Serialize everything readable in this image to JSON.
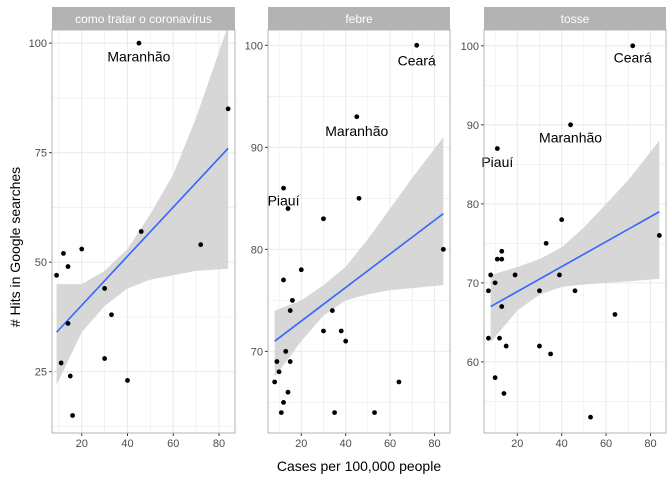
{
  "chart_data": {
    "type": "scatter",
    "xlabel": "Cases per 100,000 people",
    "ylabel": "# Hits in Google searches",
    "grid": true,
    "smoothing": "linear fit with confidence band",
    "colors": {
      "points": "#000000",
      "fit_line": "#3366ff",
      "band": "#d3d3d3",
      "strip": "#b3b3b3",
      "grid": "#ebebeb",
      "panel_border": "#b3b3b3"
    },
    "panels": [
      {
        "strip": "como tratar o coronavírus",
        "xlim": [
          7,
          87
        ],
        "ylim": [
          11,
          103
        ],
        "xticks": [
          20,
          40,
          60,
          80
        ],
        "yticks": [
          25,
          50,
          75,
          100
        ],
        "fit": {
          "x": [
            9,
            84
          ],
          "y": [
            34,
            76
          ]
        },
        "band": {
          "x": [
            9,
            20,
            30,
            40,
            50,
            60,
            70,
            84
          ],
          "lower": [
            22,
            34,
            40,
            44,
            46,
            47,
            48,
            48.5
          ],
          "upper": [
            45,
            45,
            48,
            53,
            61,
            70,
            83,
            104
          ]
        },
        "points": [
          {
            "x": 9,
            "y": 47
          },
          {
            "x": 11,
            "y": 27
          },
          {
            "x": 12,
            "y": 52
          },
          {
            "x": 14,
            "y": 36
          },
          {
            "x": 14,
            "y": 49
          },
          {
            "x": 15,
            "y": 24
          },
          {
            "x": 16,
            "y": 15
          },
          {
            "x": 20,
            "y": 53
          },
          {
            "x": 30,
            "y": 44
          },
          {
            "x": 30,
            "y": 28
          },
          {
            "x": 33,
            "y": 38
          },
          {
            "x": 40,
            "y": 23
          },
          {
            "x": 45,
            "y": 100
          },
          {
            "x": 46,
            "y": 57
          },
          {
            "x": 72,
            "y": 54
          },
          {
            "x": 84,
            "y": 85
          }
        ],
        "annotations": [
          {
            "text": "Maranhão",
            "x": 45,
            "y": 97
          }
        ]
      },
      {
        "strip": "febre",
        "xlim": [
          5,
          87
        ],
        "ylim": [
          62,
          101.5
        ],
        "xticks": [
          20,
          40,
          60,
          80
        ],
        "yticks": [
          70,
          80,
          90,
          100
        ],
        "fit": {
          "x": [
            8,
            84
          ],
          "y": [
            71,
            83.5
          ]
        },
        "band": {
          "x": [
            8,
            20,
            30,
            40,
            50,
            60,
            70,
            84
          ],
          "lower": [
            67.5,
            71,
            73.5,
            75,
            75.6,
            76,
            76.2,
            76.5
          ],
          "upper": [
            74,
            75,
            76.5,
            78.3,
            81,
            84,
            87,
            91
          ]
        },
        "points": [
          {
            "x": 8,
            "y": 67
          },
          {
            "x": 9,
            "y": 69
          },
          {
            "x": 10,
            "y": 68
          },
          {
            "x": 11,
            "y": 64
          },
          {
            "x": 12,
            "y": 86
          },
          {
            "x": 12,
            "y": 77
          },
          {
            "x": 12,
            "y": 65
          },
          {
            "x": 13,
            "y": 70
          },
          {
            "x": 14,
            "y": 84
          },
          {
            "x": 14,
            "y": 66
          },
          {
            "x": 15,
            "y": 74
          },
          {
            "x": 15,
            "y": 69
          },
          {
            "x": 16,
            "y": 75
          },
          {
            "x": 20,
            "y": 78
          },
          {
            "x": 30,
            "y": 83
          },
          {
            "x": 30,
            "y": 72
          },
          {
            "x": 34,
            "y": 74
          },
          {
            "x": 35,
            "y": 64
          },
          {
            "x": 38,
            "y": 72
          },
          {
            "x": 40,
            "y": 71
          },
          {
            "x": 45,
            "y": 93
          },
          {
            "x": 46,
            "y": 85
          },
          {
            "x": 53,
            "y": 64
          },
          {
            "x": 64,
            "y": 67
          },
          {
            "x": 72,
            "y": 100
          },
          {
            "x": 84,
            "y": 80
          }
        ],
        "annotations": [
          {
            "text": "Ceará",
            "x": 72,
            "y": 98.5
          },
          {
            "text": "Maranhão",
            "x": 45,
            "y": 91.6
          },
          {
            "text": "Piauí",
            "x": 12,
            "y": 84.8
          }
        ]
      },
      {
        "strip": "tosse",
        "xlim": [
          5,
          87
        ],
        "ylim": [
          51,
          102
        ],
        "xticks": [
          20,
          40,
          60,
          80
        ],
        "yticks": [
          60,
          70,
          80,
          90,
          100
        ],
        "fit": {
          "x": [
            8,
            84
          ],
          "y": [
            67,
            79
          ]
        },
        "band": {
          "x": [
            8,
            20,
            30,
            40,
            50,
            60,
            70,
            84
          ],
          "lower": [
            62.5,
            66.5,
            68.5,
            69.5,
            69.8,
            70,
            70.2,
            70.5
          ],
          "upper": [
            71,
            72,
            73,
            74.5,
            77,
            80,
            83,
            88
          ]
        },
        "points": [
          {
            "x": 7,
            "y": 63
          },
          {
            "x": 7,
            "y": 69
          },
          {
            "x": 8,
            "y": 71
          },
          {
            "x": 10,
            "y": 70
          },
          {
            "x": 10,
            "y": 58
          },
          {
            "x": 11,
            "y": 87
          },
          {
            "x": 11,
            "y": 73
          },
          {
            "x": 12,
            "y": 63
          },
          {
            "x": 13,
            "y": 74
          },
          {
            "x": 13,
            "y": 73
          },
          {
            "x": 13,
            "y": 67
          },
          {
            "x": 14,
            "y": 56
          },
          {
            "x": 15,
            "y": 62
          },
          {
            "x": 19,
            "y": 71
          },
          {
            "x": 30,
            "y": 69
          },
          {
            "x": 30,
            "y": 62
          },
          {
            "x": 33,
            "y": 75
          },
          {
            "x": 35,
            "y": 61
          },
          {
            "x": 39,
            "y": 71
          },
          {
            "x": 40,
            "y": 78
          },
          {
            "x": 44,
            "y": 90
          },
          {
            "x": 46,
            "y": 69
          },
          {
            "x": 53,
            "y": 53
          },
          {
            "x": 64,
            "y": 66
          },
          {
            "x": 72,
            "y": 100
          },
          {
            "x": 84,
            "y": 76
          }
        ],
        "annotations": [
          {
            "text": "Ceará",
            "x": 72,
            "y": 98.5
          },
          {
            "text": "Maranhão",
            "x": 44,
            "y": 88.4
          },
          {
            "text": "Piauí",
            "x": 11,
            "y": 85.3
          }
        ]
      }
    ]
  }
}
